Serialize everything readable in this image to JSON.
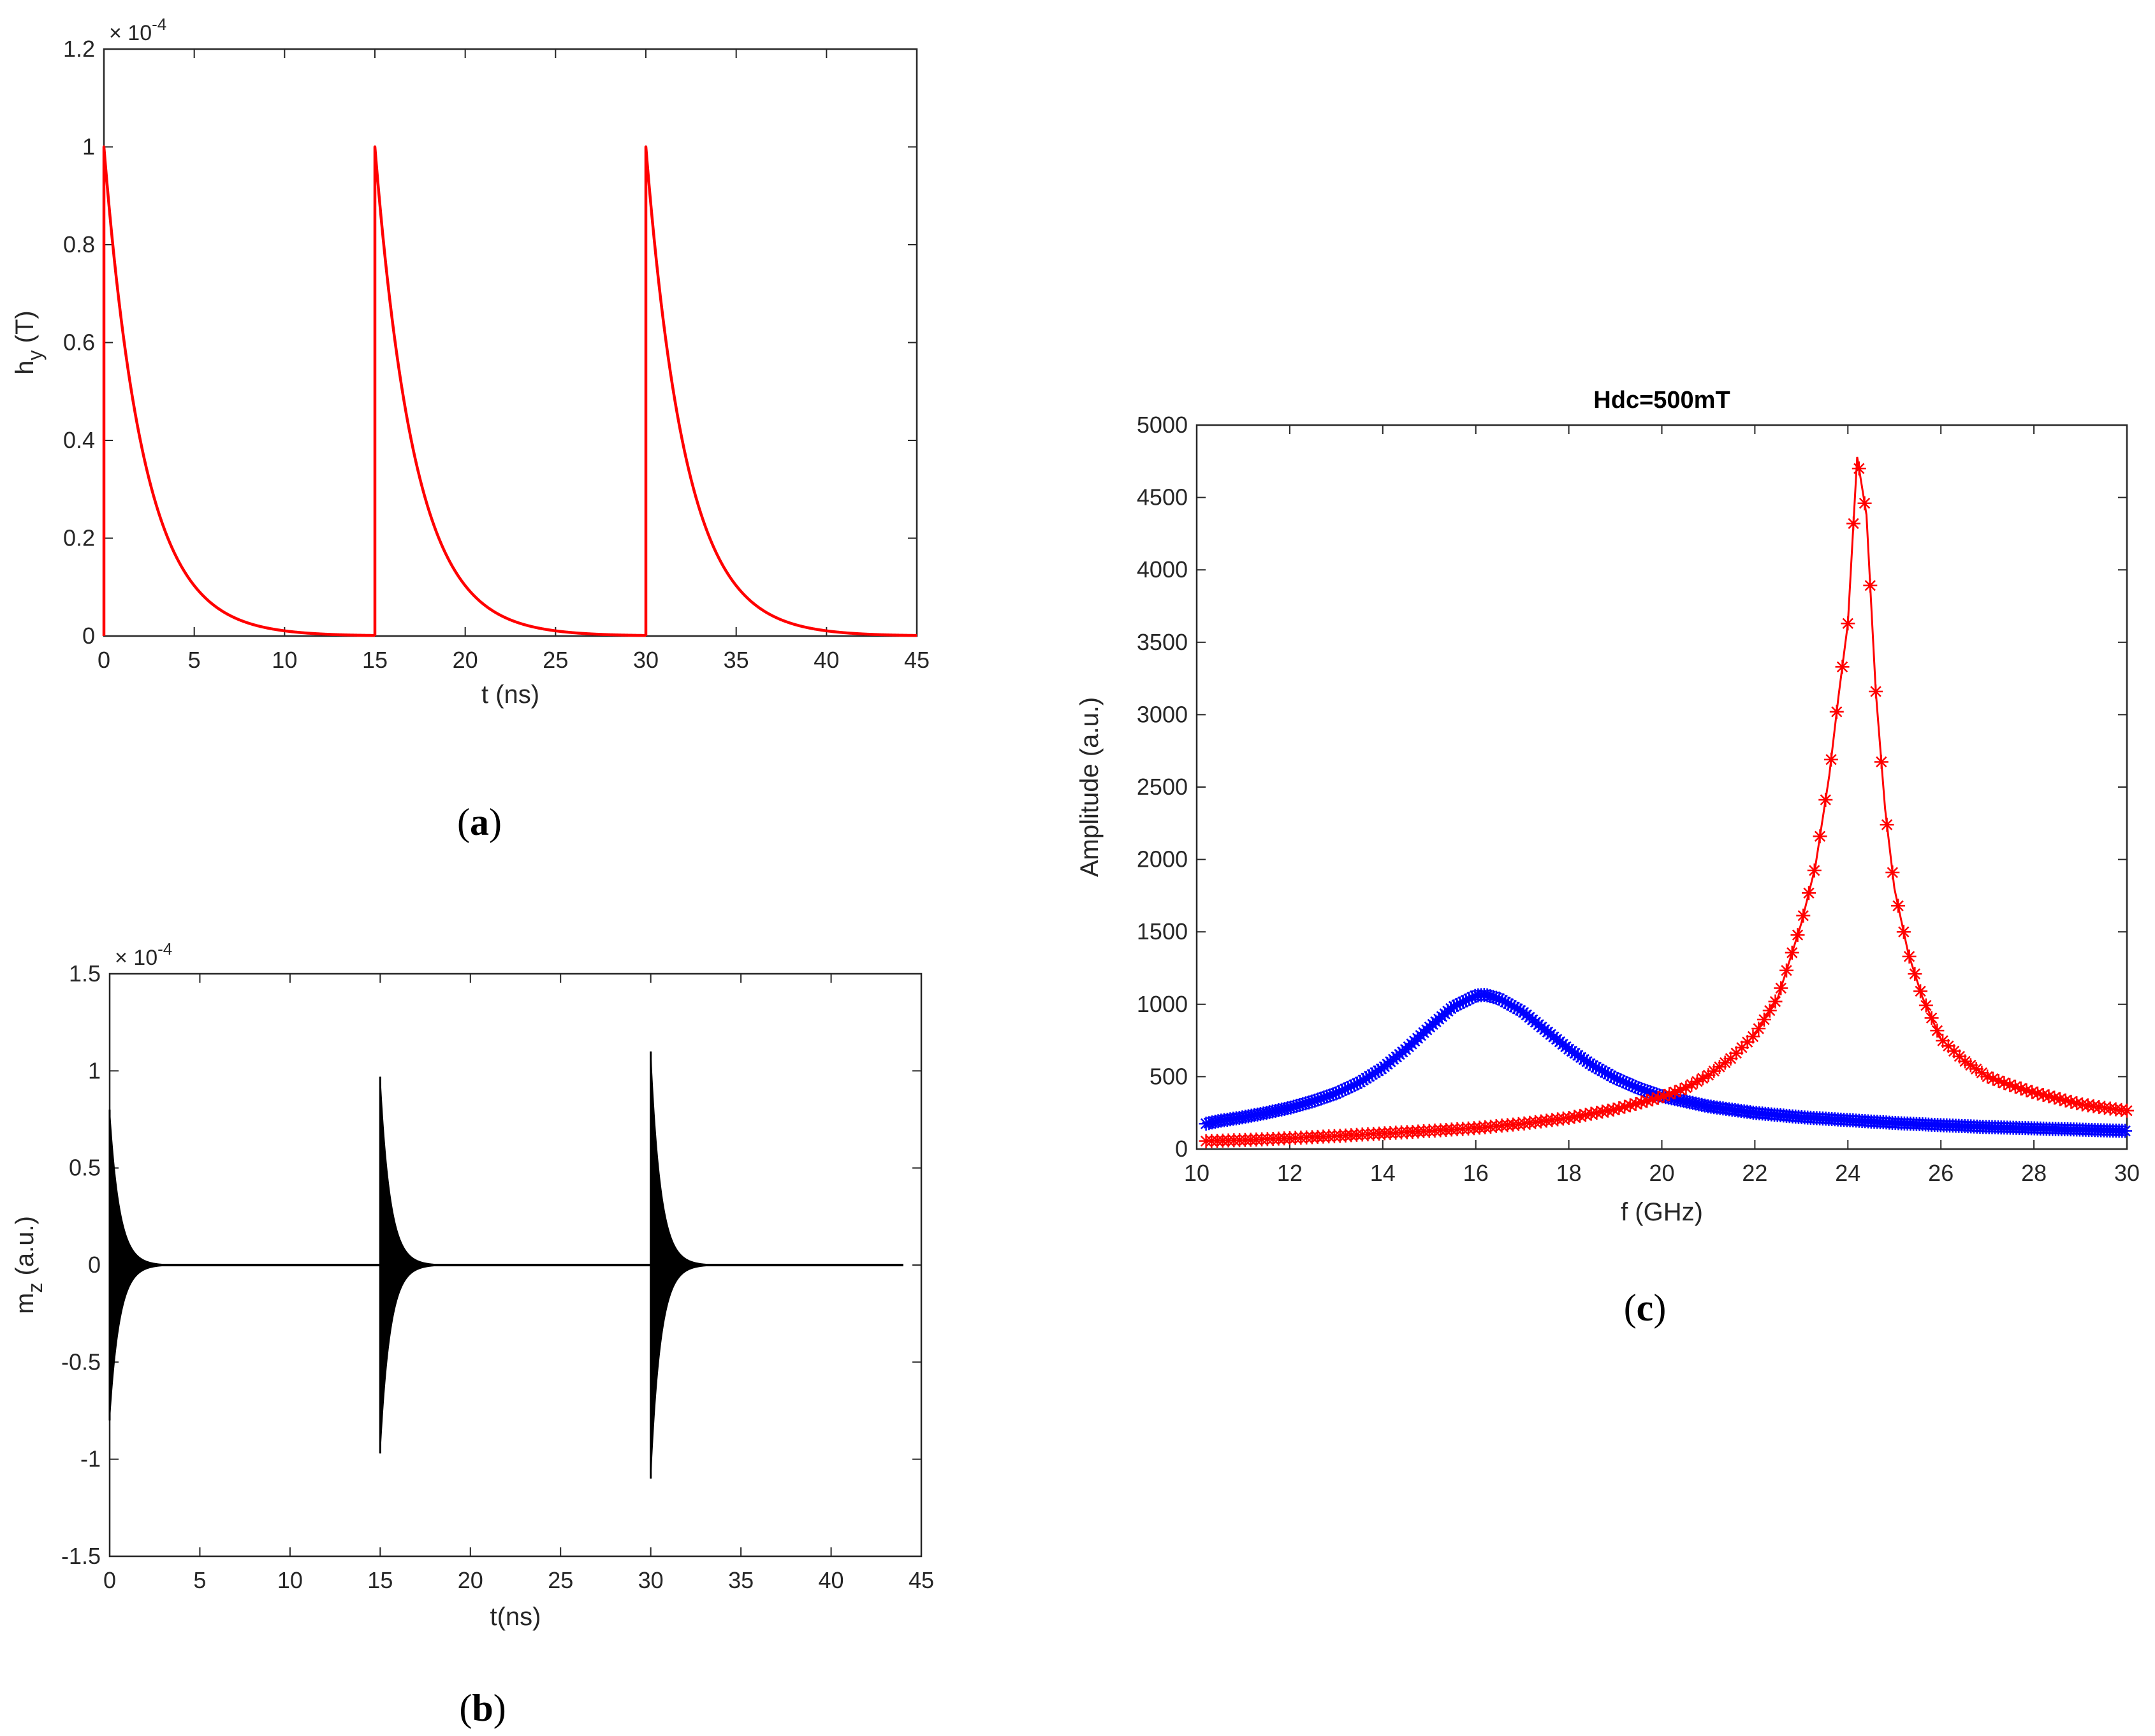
{
  "chart_data": [
    {
      "id": "a",
      "type": "line",
      "caption": "a",
      "xlabel": "t (ns)",
      "ylabel": "h",
      "ylabel_sub": "y",
      "ylabel_suffix": " (T)",
      "xlim": [
        0,
        45
      ],
      "ylim": [
        0,
        1.2
      ],
      "y_exponent_base": "× 10",
      "y_exponent": "-4",
      "x_ticks": [
        "0",
        "5",
        "10",
        "15",
        "20",
        "25",
        "30",
        "35",
        "40",
        "45"
      ],
      "y_ticks": [
        "0",
        "0.2",
        "0.4",
        "0.6",
        "0.8",
        "1",
        "1.2"
      ],
      "series": [
        {
          "name": "hy",
          "color": "#ff0000",
          "pulse_starts_ns": [
            0,
            15,
            30
          ],
          "peak": 1.0,
          "decay_tau_ns": 2.2
        }
      ]
    },
    {
      "id": "b",
      "type": "line",
      "caption": "b",
      "xlabel": "t(ns)",
      "ylabel": "m",
      "ylabel_sub": "z",
      "ylabel_suffix": " (a.u.)",
      "xlim": [
        0,
        45
      ],
      "ylim": [
        -1.5,
        1.5
      ],
      "y_exponent_base": "× 10",
      "y_exponent": "-4",
      "x_ticks": [
        "0",
        "5",
        "10",
        "15",
        "20",
        "25",
        "30",
        "35",
        "40",
        "45"
      ],
      "y_ticks": [
        "-1.5",
        "-1",
        "-0.5",
        "0",
        "0.5",
        "1",
        "1.5"
      ],
      "series": [
        {
          "name": "mz",
          "color": "#000000",
          "pulse_starts_ns": [
            0,
            15,
            30
          ],
          "pulse_peaks": [
            0.8,
            0.97,
            1.1
          ],
          "decay_tau_ns": 0.55,
          "t_end_ns": 44
        }
      ]
    },
    {
      "id": "c",
      "type": "line",
      "caption": "c",
      "title": "Hdc=500mT",
      "xlabel": "f (GHz)",
      "ylabel": "Amplitude (a.u.)",
      "xlim": [
        10,
        30
      ],
      "ylim": [
        0,
        5000
      ],
      "x_ticks": [
        "10",
        "12",
        "14",
        "16",
        "18",
        "20",
        "22",
        "24",
        "26",
        "28",
        "30"
      ],
      "y_ticks": [
        "0",
        "500",
        "1000",
        "1500",
        "2000",
        "2500",
        "3000",
        "3500",
        "4000",
        "4500",
        "5000"
      ],
      "series": [
        {
          "name": "blue",
          "color": "#0000ff",
          "marker": "*",
          "x": [
            10.2,
            10.5,
            11,
            11.5,
            12,
            12.5,
            13,
            13.5,
            14,
            14.5,
            15,
            15.5,
            16,
            16.2,
            16.5,
            17,
            17.5,
            18,
            18.5,
            19,
            19.5,
            20,
            21,
            22,
            23,
            24,
            25,
            26,
            27,
            28,
            29,
            30
          ],
          "values": [
            175,
            195,
            220,
            250,
            285,
            330,
            385,
            460,
            560,
            690,
            840,
            980,
            1060,
            1065,
            1040,
            950,
            820,
            690,
            580,
            490,
            420,
            365,
            295,
            250,
            220,
            200,
            180,
            165,
            152,
            143,
            134,
            125
          ]
        },
        {
          "name": "red",
          "color": "#ff0000",
          "marker": "*",
          "x": [
            10.2,
            11,
            12,
            13,
            14,
            15,
            16,
            17,
            18,
            19,
            20,
            20.5,
            21,
            21.5,
            22,
            22.5,
            23,
            23.3,
            23.6,
            23.8,
            24,
            24.2,
            24.4,
            24.6,
            24.8,
            25,
            25.3,
            25.6,
            26,
            26.5,
            27,
            27.5,
            28,
            28.5,
            29,
            29.5,
            30
          ],
          "values": [
            55,
            62,
            75,
            90,
            108,
            125,
            145,
            175,
            215,
            275,
            360,
            420,
            510,
            630,
            790,
            1050,
            1560,
            1950,
            2580,
            3130,
            3630,
            4780,
            4380,
            3160,
            2350,
            1800,
            1350,
            1050,
            760,
            610,
            500,
            440,
            390,
            350,
            310,
            285,
            265
          ]
        }
      ]
    }
  ]
}
